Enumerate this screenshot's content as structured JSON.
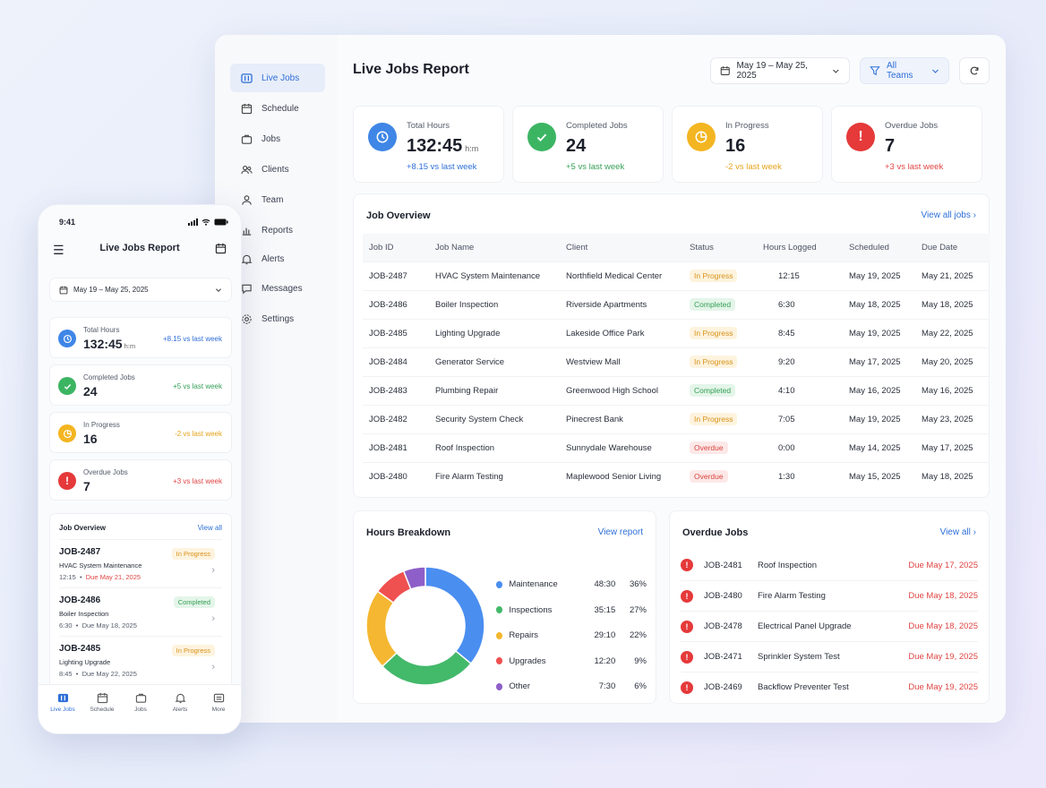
{
  "desktop": {
    "sidebar": {
      "items": [
        {
          "label": "Live Jobs",
          "icon": "live-jobs-icon",
          "active": true
        },
        {
          "label": "Schedule",
          "icon": "calendar-icon"
        },
        {
          "label": "Jobs",
          "icon": "briefcase-icon"
        },
        {
          "label": "Clients",
          "icon": "users-icon"
        },
        {
          "label": "Team",
          "icon": "user-icon"
        },
        {
          "label": "Reports",
          "icon": "bar-chart-icon"
        },
        {
          "label": "Alerts",
          "icon": "bell-icon"
        },
        {
          "label": "Messages",
          "icon": "chat-icon"
        },
        {
          "label": "Settings",
          "icon": "gear-icon"
        }
      ]
    },
    "header": {
      "title": "Live Jobs Report",
      "date_range": "May 19 – May 25, 2025",
      "team_filter": "All Teams"
    },
    "stats": [
      {
        "label": "Total Hours",
        "value": "132:45",
        "unit": "h:m",
        "delta": "+8.15 vs last week",
        "color": "#3f86e6"
      },
      {
        "label": "Completed Jobs",
        "value": "24",
        "unit": "",
        "delta": "+5 vs last week",
        "color": "#3cb563"
      },
      {
        "label": "In Progress",
        "value": "16",
        "unit": "",
        "delta": "-2 vs last week",
        "color": "#f3b521"
      },
      {
        "label": "Overdue Jobs",
        "value": "7",
        "unit": "",
        "delta": "+3 vs last week",
        "color": "#e5393a"
      }
    ],
    "job_overview": {
      "title": "Job Overview",
      "link": "View all jobs",
      "columns": [
        "Job ID",
        "Job Name",
        "Client",
        "Status",
        "Hours Logged",
        "Scheduled",
        "Due Date"
      ],
      "rows": [
        {
          "id": "JOB-2487",
          "name": "HVAC System Maintenance",
          "client": "Northfield Medical Center",
          "status": "In Progress",
          "hours": "12:15",
          "scheduled": "May 19, 2025",
          "due": "May 21, 2025",
          "due_red": true
        },
        {
          "id": "JOB-2486",
          "name": "Boiler Inspection",
          "client": "Riverside Apartments",
          "status": "Completed",
          "hours": "6:30",
          "scheduled": "May 18, 2025",
          "due": "May 18, 2025",
          "due_red": false
        },
        {
          "id": "JOB-2485",
          "name": "Lighting Upgrade",
          "client": "Lakeside Office Park",
          "status": "In Progress",
          "hours": "8:45",
          "scheduled": "May 19, 2025",
          "due": "May 22, 2025",
          "due_red": false
        },
        {
          "id": "JOB-2484",
          "name": "Generator Service",
          "client": "Westview Mall",
          "status": "In Progress",
          "hours": "9:20",
          "scheduled": "May 17, 2025",
          "due": "May 20, 2025",
          "due_red": true
        },
        {
          "id": "JOB-2483",
          "name": "Plumbing Repair",
          "client": "Greenwood High School",
          "status": "Completed",
          "hours": "4:10",
          "scheduled": "May 16, 2025",
          "due": "May 16, 2025",
          "due_red": false
        },
        {
          "id": "JOB-2482",
          "name": "Security System Check",
          "client": "Pinecrest Bank",
          "status": "In Progress",
          "hours": "7:05",
          "scheduled": "May 19, 2025",
          "due": "May 23, 2025",
          "due_red": false
        },
        {
          "id": "JOB-2481",
          "name": "Roof Inspection",
          "client": "Sunnydale Warehouse",
          "status": "Overdue",
          "hours": "0:00",
          "scheduled": "May 14, 2025",
          "due": "May 17, 2025",
          "due_red": true
        },
        {
          "id": "JOB-2480",
          "name": "Fire Alarm Testing",
          "client": "Maplewood Senior Living",
          "status": "Overdue",
          "hours": "1:30",
          "scheduled": "May 15, 2025",
          "due": "May 18, 2025",
          "due_red": true
        }
      ]
    },
    "hours_breakdown": {
      "title": "Hours Breakdown",
      "link": "View report"
    },
    "overdue": {
      "title": "Overdue Jobs",
      "link": "View all",
      "rows": [
        {
          "id": "JOB-2481",
          "name": "Roof Inspection",
          "due": "Due May 17, 2025"
        },
        {
          "id": "JOB-2480",
          "name": "Fire Alarm Testing",
          "due": "Due May 18, 2025"
        },
        {
          "id": "JOB-2478",
          "name": "Electrical Panel Upgrade",
          "due": "Due May 18, 2025"
        },
        {
          "id": "JOB-2471",
          "name": "Sprinkler System Test",
          "due": "Due May 19, 2025"
        },
        {
          "id": "JOB-2469",
          "name": "Backflow Preventer Test",
          "due": "Due May 19, 2025"
        }
      ]
    }
  },
  "chart_data": {
    "type": "pie",
    "categories": [
      "Maintenance",
      "Inspections",
      "Repairs",
      "Upgrades",
      "Other"
    ],
    "hours": [
      "48:30",
      "35:15",
      "29:10",
      "12:20",
      "7:30"
    ],
    "percents": [
      "36%",
      "27%",
      "22%",
      "9%",
      "6%"
    ],
    "values": [
      36,
      27,
      22,
      9,
      6
    ],
    "colors": [
      "#4a8ef0",
      "#43b96a",
      "#f5b731",
      "#ef5050",
      "#8e5fc8"
    ],
    "legend": "right"
  },
  "phone": {
    "time": "9:41",
    "title": "Live Jobs Report",
    "date_range": "May 19 – May 25, 2025",
    "stats": [
      {
        "label": "Total Hours",
        "value": "132:45",
        "unit": "h:m",
        "delta": "+8.15 vs last week"
      },
      {
        "label": "Completed Jobs",
        "value": "24",
        "unit": "",
        "delta": "+5 vs last week"
      },
      {
        "label": "In Progress",
        "value": "16",
        "unit": "",
        "delta": "-2 vs last week"
      },
      {
        "label": "Overdue Jobs",
        "value": "7",
        "unit": "",
        "delta": "+3 vs last week"
      }
    ],
    "job_overview": {
      "title": "Job Overview",
      "link": "View all",
      "jobs": [
        {
          "id": "JOB-2487",
          "name": "HVAC System Maintenance",
          "hours": "12:15",
          "due": "Due May 21, 2025",
          "status": "In Progress",
          "due_red": true
        },
        {
          "id": "JOB-2486",
          "name": "Boiler Inspection",
          "hours": "6:30",
          "due": "Due May 18, 2025",
          "status": "Completed",
          "due_red": false
        },
        {
          "id": "JOB-2485",
          "name": "Lighting Upgrade",
          "hours": "8:45",
          "due": "Due May 22, 2025",
          "status": "In Progress",
          "due_red": false
        }
      ]
    },
    "tabs": [
      {
        "label": "Live Jobs",
        "active": true
      },
      {
        "label": "Schedule"
      },
      {
        "label": "Jobs"
      },
      {
        "label": "Alerts"
      },
      {
        "label": "More"
      }
    ]
  }
}
